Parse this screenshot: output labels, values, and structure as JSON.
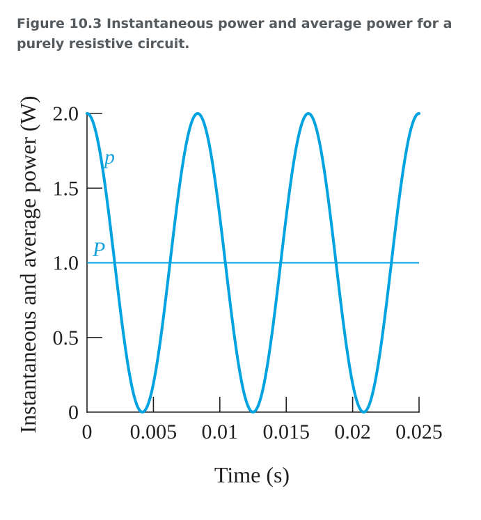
{
  "caption": {
    "label": "Figure 10.3",
    "text": "Instantaneous power and average power for a purely resistive circuit."
  },
  "colors": {
    "curve": "#00a3e0",
    "axis": "#231f20",
    "caption": "#555a5e"
  },
  "chart_data": {
    "type": "line",
    "xlabel": "Time (s)",
    "ylabel": "Instantaneous and average power (W)",
    "xlim": [
      0,
      0.025
    ],
    "ylim": [
      0,
      2.0
    ],
    "x_ticks": [
      {
        "value": 0,
        "label": "0"
      },
      {
        "value": 0.005,
        "label": "0.005"
      },
      {
        "value": 0.01,
        "label": "0.01"
      },
      {
        "value": 0.015,
        "label": "0.015"
      },
      {
        "value": 0.02,
        "label": "0.02"
      },
      {
        "value": 0.025,
        "label": "0.025"
      }
    ],
    "y_ticks": [
      {
        "value": 0,
        "label": "0"
      },
      {
        "value": 0.5,
        "label": "0.5"
      },
      {
        "value": 1.0,
        "label": "1.0"
      },
      {
        "value": 1.5,
        "label": "1.5"
      },
      {
        "value": 2.0,
        "label": "2.0"
      }
    ],
    "grid": false,
    "series": [
      {
        "name": "p",
        "function": "1 + cos(2*pi*x/T)",
        "period": 0.008333,
        "x": [
          0,
          0.001042,
          0.002083,
          0.003125,
          0.004167,
          0.005208,
          0.00625,
          0.007292,
          0.008333,
          0.009375,
          0.010417,
          0.011458,
          0.0125,
          0.013542,
          0.014583,
          0.015625,
          0.016667,
          0.017708,
          0.01875,
          0.019792,
          0.020833,
          0.021875,
          0.022917,
          0.023958,
          0.025
        ],
        "y": [
          2.0,
          1.71,
          1.0,
          0.29,
          0.0,
          0.29,
          1.0,
          1.71,
          2.0,
          1.71,
          1.0,
          0.29,
          0.0,
          0.29,
          1.0,
          1.71,
          2.0,
          1.71,
          1.0,
          0.29,
          0.0,
          0.29,
          1.0,
          1.71,
          2.0
        ]
      },
      {
        "name": "P",
        "x": [
          0,
          0.025
        ],
        "y": [
          1.0,
          1.0
        ]
      }
    ]
  }
}
